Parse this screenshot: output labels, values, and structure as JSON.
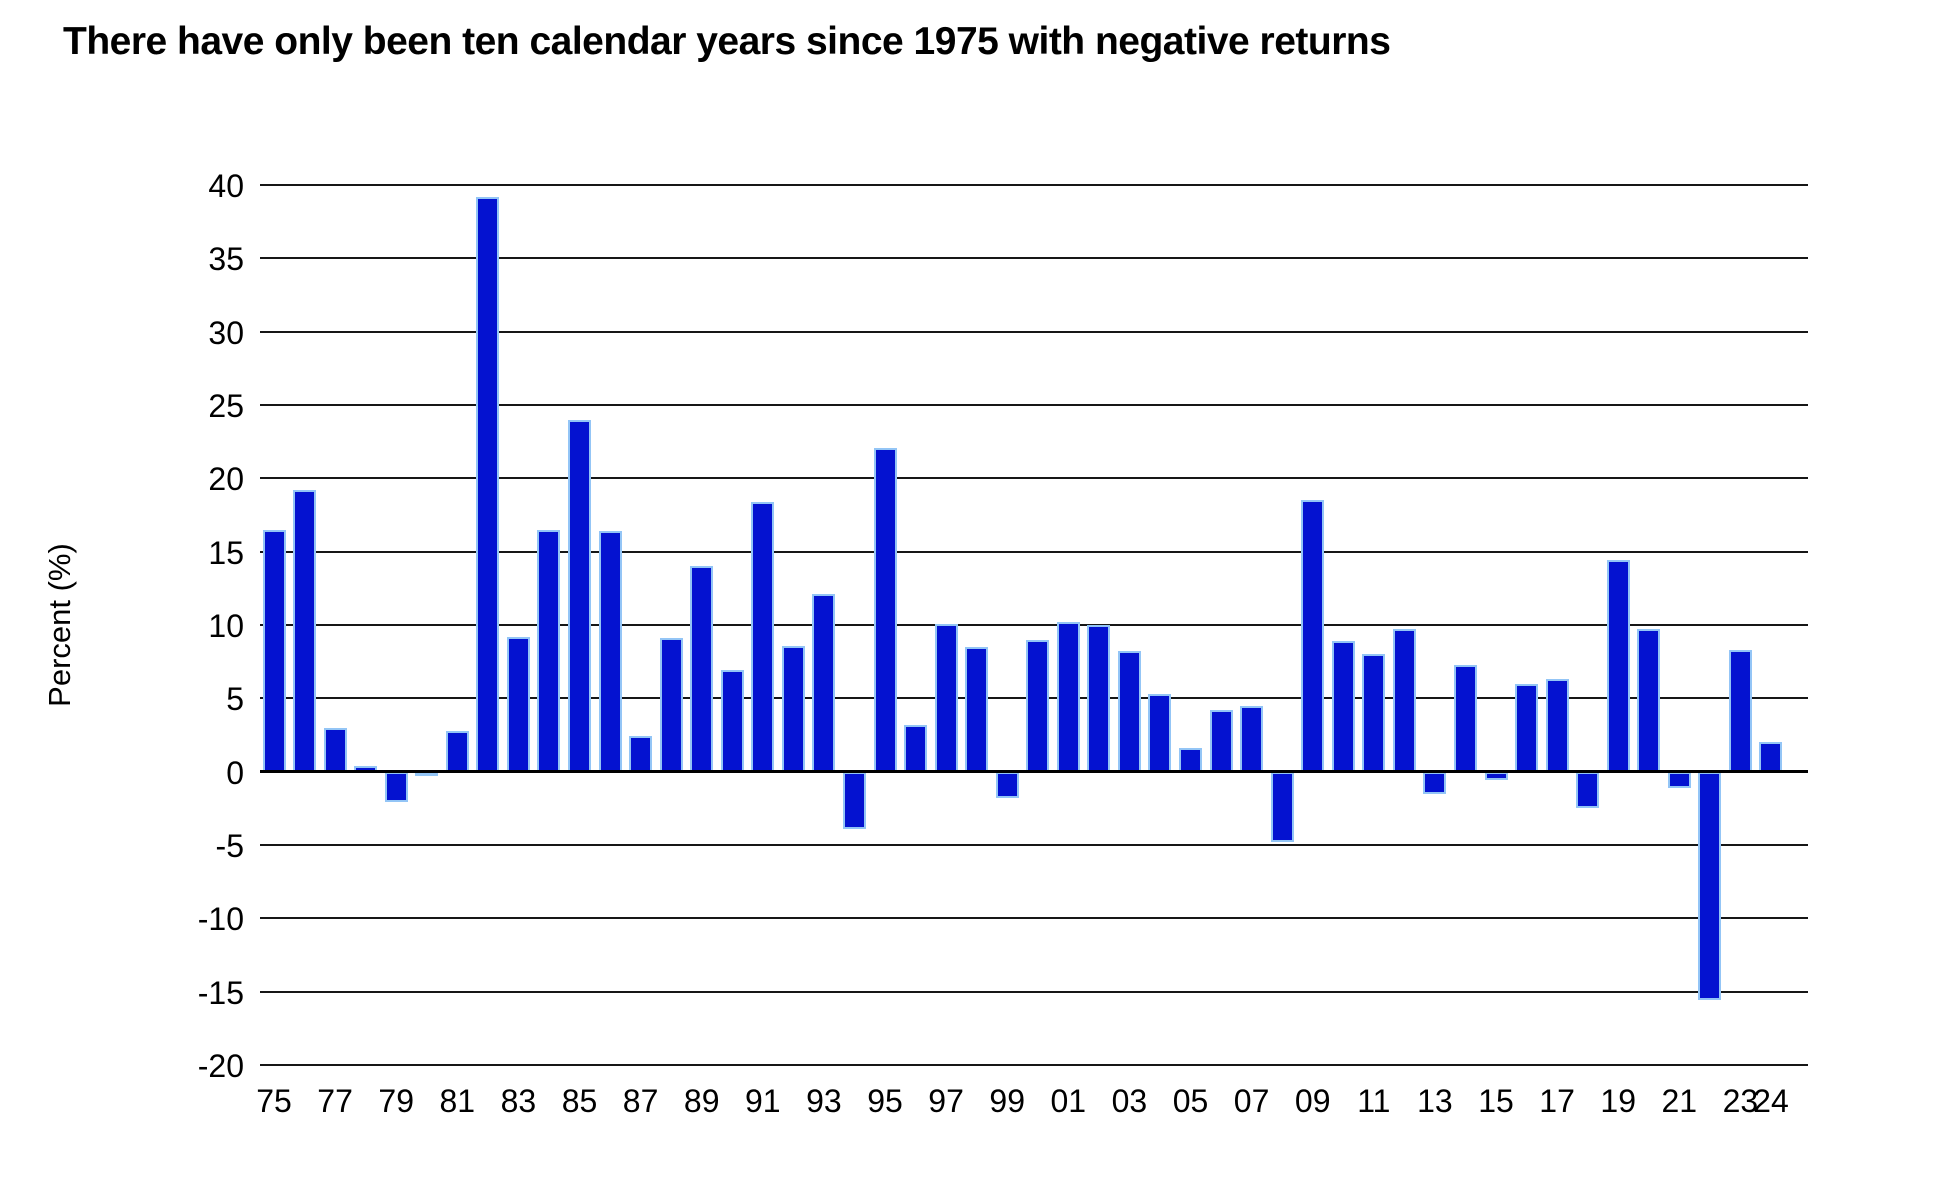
{
  "chart_data": {
    "type": "bar",
    "title": "There have only been ten calendar years since 1975 with negative returns",
    "ylabel": "Percent (%)",
    "xlabel": "",
    "ylim": [
      -20,
      40
    ],
    "ytick_step": 5,
    "grid": "horizontal",
    "legend": "none",
    "bar_color": "#0412d0",
    "bar_edge_color": "#93c5f6",
    "ytick_labels": [
      "40",
      "35",
      "30",
      "25",
      "20",
      "15",
      "10",
      "5",
      "0",
      "-5",
      "-10",
      "-15",
      "-20"
    ],
    "xtick_labels": [
      "75",
      "77",
      "79",
      "81",
      "83",
      "85",
      "87",
      "89",
      "91",
      "93",
      "95",
      "97",
      "99",
      "01",
      "03",
      "05",
      "07",
      "09",
      "11",
      "13",
      "15",
      "17",
      "19",
      "21",
      "23",
      "24"
    ],
    "years": [
      1975,
      1976,
      1977,
      1978,
      1979,
      1980,
      1981,
      1982,
      1983,
      1984,
      1985,
      1986,
      1987,
      1988,
      1989,
      1990,
      1991,
      1992,
      1993,
      1994,
      1995,
      1996,
      1997,
      1998,
      1999,
      2000,
      2001,
      2002,
      2003,
      2004,
      2005,
      2006,
      2007,
      2008,
      2009,
      2010,
      2011,
      2012,
      2013,
      2014,
      2015,
      2016,
      2017,
      2018,
      2019,
      2020,
      2021,
      2022,
      2023,
      2024
    ],
    "values": [
      16.5,
      19.2,
      3.0,
      0.4,
      -2.1,
      -0.3,
      2.8,
      39.2,
      9.2,
      16.5,
      24.0,
      16.4,
      2.4,
      9.1,
      14.0,
      6.9,
      18.4,
      8.6,
      12.1,
      -3.9,
      22.1,
      3.2,
      10.1,
      8.5,
      -1.8,
      9.0,
      10.2,
      10.0,
      8.2,
      5.3,
      1.6,
      4.2,
      4.5,
      -4.8,
      18.5,
      8.9,
      8.0,
      9.7,
      -1.5,
      7.3,
      -0.6,
      6.0,
      6.3,
      -2.5,
      14.4,
      9.7,
      -1.1,
      -15.6,
      8.3,
      2.0
    ],
    "negative_years_count": "ten"
  }
}
